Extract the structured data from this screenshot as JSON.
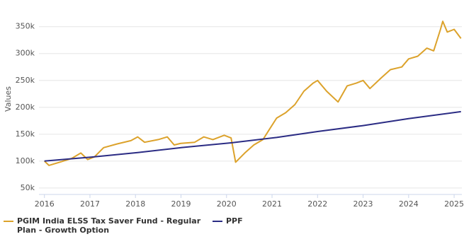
{
  "chart_data": {
    "type": "line",
    "y_label": "Values",
    "x": [
      2016.0,
      2016.1,
      2016.3,
      2016.6,
      2016.8,
      2016.95,
      2017.1,
      2017.3,
      2017.6,
      2017.9,
      2018.05,
      2018.2,
      2018.5,
      2018.7,
      2018.85,
      2019.0,
      2019.3,
      2019.5,
      2019.7,
      2019.95,
      2020.1,
      2020.2,
      2020.4,
      2020.6,
      2020.8,
      2020.95,
      2021.1,
      2021.3,
      2021.5,
      2021.7,
      2021.9,
      2022.0,
      2022.2,
      2022.45,
      2022.65,
      2022.85,
      2023.0,
      2023.15,
      2023.4,
      2023.6,
      2023.85,
      2024.0,
      2024.2,
      2024.4,
      2024.55,
      2024.7,
      2024.75,
      2024.85,
      2025.0,
      2025.15
    ],
    "series": [
      {
        "name": "PGIM India ELSS Tax Saver Fund - Regular Plan - Growth Option",
        "color": "#dca22b",
        "values": [
          100000,
          92000,
          97000,
          105000,
          115000,
          103000,
          108000,
          125000,
          132000,
          138000,
          145000,
          135000,
          140000,
          145000,
          130000,
          133000,
          135000,
          145000,
          140000,
          148000,
          143000,
          98000,
          115000,
          130000,
          140000,
          160000,
          180000,
          190000,
          205000,
          230000,
          245000,
          250000,
          230000,
          210000,
          240000,
          245000,
          250000,
          235000,
          255000,
          270000,
          275000,
          290000,
          295000,
          310000,
          305000,
          345000,
          360000,
          340000,
          345000,
          328000
        ]
      },
      {
        "name": "PPF",
        "color": "#2b2c84",
        "values": [
          100000,
          null,
          null,
          null,
          null,
          null,
          108000,
          null,
          null,
          null,
          116000,
          null,
          null,
          null,
          null,
          125000,
          null,
          null,
          null,
          null,
          134000,
          null,
          null,
          null,
          null,
          null,
          144000,
          null,
          null,
          null,
          null,
          155000,
          null,
          null,
          null,
          null,
          166000,
          null,
          null,
          null,
          null,
          179000,
          null,
          null,
          null,
          null,
          null,
          null,
          null,
          192000
        ]
      }
    ],
    "xlim": [
      2015.88,
      2025.17
    ],
    "xticks": [
      2016,
      2017,
      2018,
      2019,
      2020,
      2021,
      2022,
      2023,
      2024,
      2025
    ],
    "ylim": [
      38000,
      393000
    ],
    "yticks": [
      {
        "value": 50000,
        "label": "50k"
      },
      {
        "value": 100000,
        "label": "100k"
      },
      {
        "value": 150000,
        "label": "150k"
      },
      {
        "value": 200000,
        "label": "200k"
      },
      {
        "value": 250000,
        "label": "250k"
      },
      {
        "value": 300000,
        "label": "300k"
      },
      {
        "value": 350000,
        "label": "350k"
      }
    ],
    "grid": true
  }
}
